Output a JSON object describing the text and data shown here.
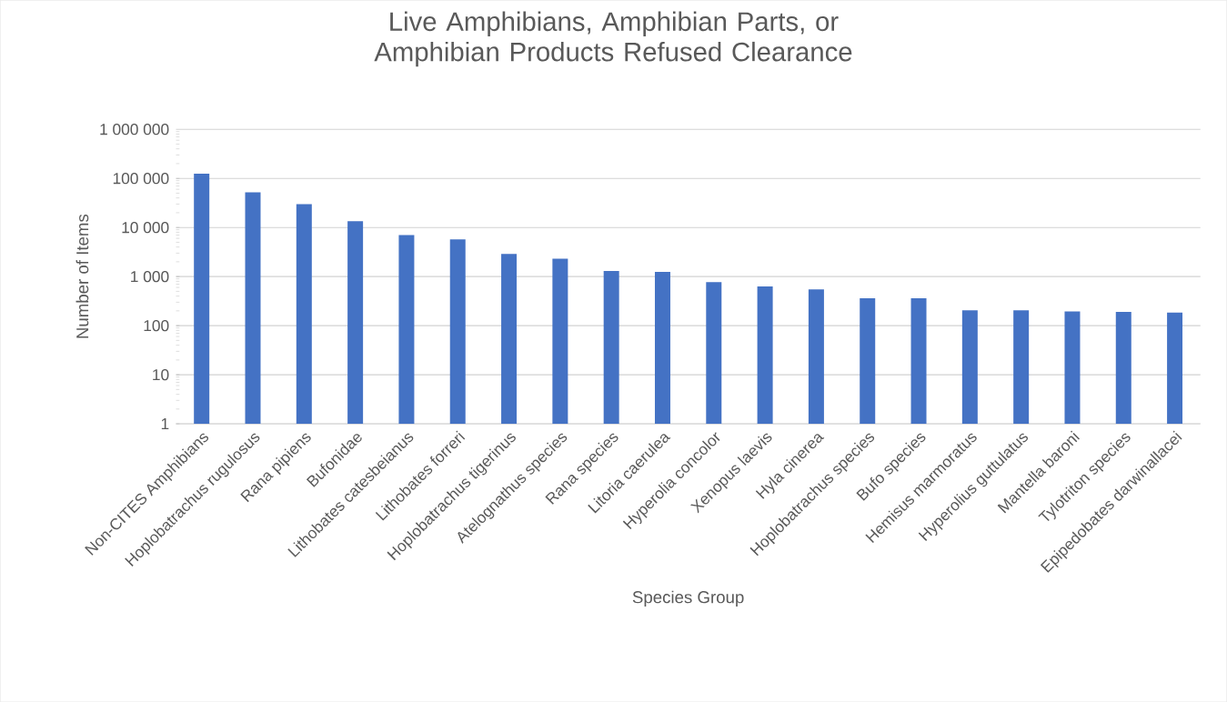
{
  "chart_data": {
    "type": "bar",
    "title": "Live Amphibians, Amphibian Parts, or Amphibian Products Refused Clearance",
    "xlabel": "Species Group",
    "ylabel": "Number of Items",
    "categories": [
      "Non-CITES Amphibians",
      "Hoplobatrachus rugulosus",
      "Rana pipiens",
      "Bufonidae",
      "Lithobates catesbeianus",
      "Lithobates forreri",
      "Hoplobatrachus tigerinus",
      "Atelognathus species",
      "Rana species",
      "Litoria caerulea",
      "Hyperolia concolor",
      "Xenopus laevis",
      "Hyla cinerea",
      "Hoplobatrachus species",
      "Bufo species",
      "Hemisus marmoratus",
      "Hyperolius guttulatus",
      "Mantella baroni",
      "Tylotriton species",
      "Epipedobates darwinallacei"
    ],
    "values": [
      125000,
      52000,
      30000,
      13500,
      7000,
      5700,
      2900,
      2300,
      1300,
      1250,
      770,
      630,
      550,
      360,
      360,
      205,
      205,
      195,
      190,
      185
    ],
    "color": "#4472c4",
    "log": true,
    "grid": "y",
    "ylim": [
      1,
      1000000
    ],
    "yticks": [
      1,
      10,
      100,
      {
        "value": 1000,
        "label": "1 000"
      },
      {
        "value": 10000,
        "label": "10 000"
      },
      {
        "value": 100000,
        "label": "100 000"
      },
      {
        "value": 1000000,
        "label": "1 000 000"
      }
    ]
  }
}
